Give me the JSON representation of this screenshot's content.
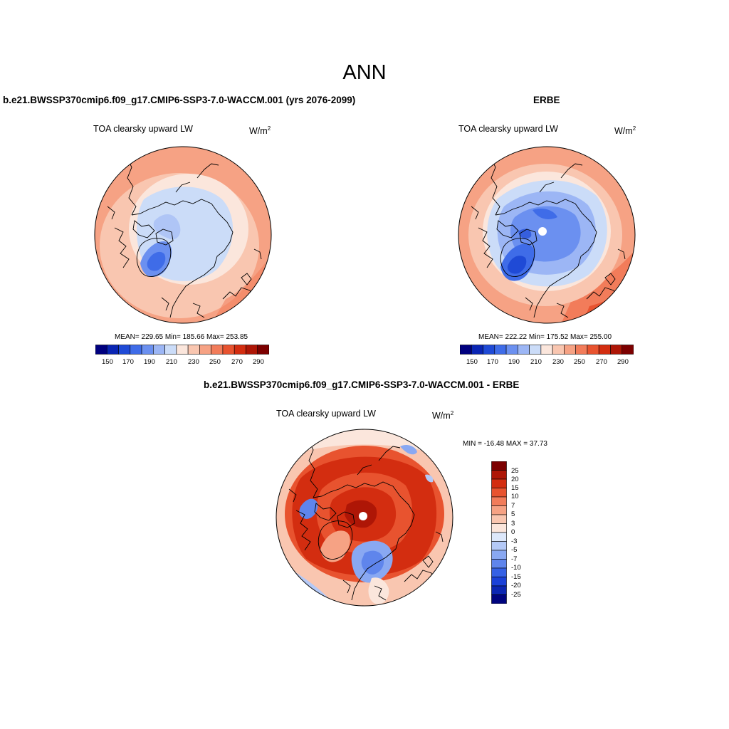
{
  "figure_title": "ANN",
  "units_base": "W/m",
  "units_exp": "2",
  "colors": {
    "abs_scale": [
      "#00007f",
      "#0a25b4",
      "#1f4ad6",
      "#3f6ce8",
      "#6b90f0",
      "#9cb6f5",
      "#cbdcf8",
      "#fbe6dc",
      "#f9c6b0",
      "#f6a284",
      "#f27c5a",
      "#e8532f",
      "#d32d10",
      "#ae1606",
      "#7c0000"
    ],
    "diff_scale_top_to_bottom": [
      "#7c0000",
      "#ae1606",
      "#d32d10",
      "#e8532f",
      "#f27c5a",
      "#f6a284",
      "#f9c6b0",
      "#fbe6dc",
      "#dde8fb",
      "#b4c9f7",
      "#89a8f2",
      "#5f85ec",
      "#3561e5",
      "#1a41d8",
      "#0b26b2",
      "#00047f"
    ]
  },
  "panels": {
    "model": {
      "title": "b.e21.BWSSP370cmip6.f09_g17.CMIP6-SSP3-7.0-WACCM.001 (yrs 2076-2099)",
      "variable": "TOA clearsky upward LW",
      "stats": "MEAN= 229.65  Min= 185.66  Max= 253.85",
      "colorbar_ticks": [
        "150",
        "170",
        "190",
        "210",
        "230",
        "250",
        "270",
        "290"
      ]
    },
    "obs": {
      "title": "ERBE",
      "variable": "TOA clearsky upward LW",
      "stats": "MEAN= 222.22  Min= 175.52  Max= 255.00",
      "colorbar_ticks": [
        "150",
        "170",
        "190",
        "210",
        "230",
        "250",
        "270",
        "290"
      ]
    },
    "diff": {
      "title": "b.e21.BWSSP370cmip6.f09_g17.CMIP6-SSP3-7.0-WACCM.001 - ERBE",
      "variable": "TOA clearsky upward LW",
      "minmax": "MIN = -16.48 MAX =  37.73",
      "colorbar_ticks": [
        "25",
        "20",
        "15",
        "10",
        "7",
        "5",
        "3",
        "0",
        "-3",
        "-5",
        "-7",
        "-10",
        "-15",
        "-20",
        "-25"
      ]
    }
  }
}
